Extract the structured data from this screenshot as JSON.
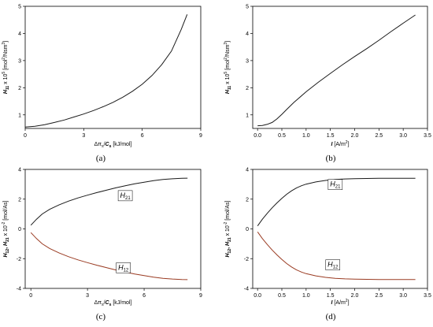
{
  "chart_data": [
    {
      "type": "line",
      "panel": "a",
      "caption": "(a)",
      "ylabel": {
        "var": "H",
        "sub": "11",
        "rest": " x 10",
        "sup": "5",
        "unit_a": " [mol",
        "unit_sup": "2",
        "unit_b": "/Nsm",
        "unit_sup2": "3",
        "unit_c": "]"
      },
      "xlabel": {
        "pre": "Δπ",
        "sub": "s",
        "mid": "/",
        "var": "C",
        "sub2": "s",
        "post": " [kJ/mol]"
      },
      "xlim": [
        0,
        9
      ],
      "ylim": [
        0.5,
        5
      ],
      "xticks": [
        0,
        3,
        6,
        9
      ],
      "yticks": [
        1,
        2,
        3,
        4,
        5
      ],
      "series": [
        {
          "color": "#1a1a1a",
          "x": [
            0,
            0.5,
            1,
            1.5,
            2,
            2.5,
            3,
            3.5,
            4,
            4.5,
            5,
            5.5,
            6,
            6.5,
            7,
            7.5,
            8,
            8.3
          ],
          "y": [
            0.55,
            0.58,
            0.64,
            0.72,
            0.81,
            0.92,
            1.03,
            1.16,
            1.3,
            1.46,
            1.65,
            1.87,
            2.13,
            2.45,
            2.85,
            3.35,
            4.15,
            4.7
          ]
        }
      ]
    },
    {
      "type": "line",
      "panel": "b",
      "caption": "(b)",
      "ylabel": {
        "var": "H",
        "sub": "11",
        "rest": " x 10",
        "sup": "5",
        "unit_a": " [mol",
        "unit_sup": "2",
        "unit_b": "/Nsm",
        "unit_sup2": "3",
        "unit_c": "]"
      },
      "xlabel": {
        "var": "I",
        "post": " [A/m",
        "sup": "2",
        "end": "]"
      },
      "xlim": [
        -0.1,
        3.5
      ],
      "ylim": [
        0.5,
        5
      ],
      "xticks": [
        0.0,
        0.5,
        1.0,
        1.5,
        2.0,
        2.5,
        3.0,
        3.5
      ],
      "xticklabels": [
        "0.0",
        "0.5",
        "1.0",
        "1.5",
        "2.0",
        "2.5",
        "3.0",
        "3.5"
      ],
      "yticks": [
        1,
        2,
        3,
        4,
        5
      ],
      "series": [
        {
          "color": "#1a1a1a",
          "x": [
            0,
            0.1,
            0.2,
            0.3,
            0.4,
            0.5,
            0.6,
            0.75,
            1.0,
            1.25,
            1.5,
            1.75,
            2.0,
            2.25,
            2.5,
            2.75,
            3.0,
            3.25
          ],
          "y": [
            0.6,
            0.61,
            0.65,
            0.72,
            0.85,
            1.02,
            1.2,
            1.46,
            1.85,
            2.2,
            2.53,
            2.85,
            3.15,
            3.44,
            3.75,
            4.07,
            4.38,
            4.68
          ]
        }
      ]
    },
    {
      "type": "line",
      "panel": "c",
      "caption": "(c)",
      "ylabel": {
        "var": "H",
        "sub": "12",
        "mid": ", ",
        "var2": "H",
        "sub2": "21",
        "rest": " x 10",
        "sup": "-2",
        "unit_a": " [mol/As]"
      },
      "xlabel": {
        "pre": "Δπ",
        "sub": "s",
        "mid": "/",
        "var": "C",
        "sub2": "s",
        "post": " [kJ/mol]"
      },
      "xlim": [
        -0.3,
        9
      ],
      "ylim": [
        -4,
        4
      ],
      "xticks": [
        0,
        3,
        6,
        9
      ],
      "yticks": [
        -4,
        -2,
        0,
        2,
        4
      ],
      "annotations": [
        {
          "var": "H",
          "sub": "21",
          "x": 5.0,
          "y": 2.1
        },
        {
          "var": "H",
          "sub": "12",
          "x": 4.9,
          "y": -2.75
        }
      ],
      "series": [
        {
          "color": "#1a1a1a",
          "x": [
            0,
            0.3,
            0.6,
            1,
            1.5,
            2,
            2.5,
            3,
            3.5,
            4,
            4.5,
            5,
            5.5,
            6,
            6.5,
            7,
            7.5,
            8,
            8.3
          ],
          "y": [
            0.25,
            0.65,
            1.0,
            1.32,
            1.62,
            1.87,
            2.08,
            2.27,
            2.44,
            2.6,
            2.76,
            2.9,
            3.03,
            3.14,
            3.24,
            3.32,
            3.37,
            3.4,
            3.41
          ]
        },
        {
          "color": "#9a3b22",
          "x": [
            0,
            0.3,
            0.6,
            1,
            1.5,
            2,
            2.5,
            3,
            3.5,
            4,
            4.5,
            5,
            5.5,
            6,
            6.5,
            7,
            7.5,
            8,
            8.3
          ],
          "y": [
            -0.25,
            -0.65,
            -1.0,
            -1.32,
            -1.62,
            -1.87,
            -2.08,
            -2.27,
            -2.44,
            -2.6,
            -2.76,
            -2.9,
            -3.03,
            -3.14,
            -3.24,
            -3.32,
            -3.37,
            -3.4,
            -3.41
          ]
        }
      ]
    },
    {
      "type": "line",
      "panel": "d",
      "caption": "(d)",
      "ylabel": {
        "var": "H",
        "sub": "12",
        "mid": ", ",
        "var2": "H",
        "sub2": "21",
        "rest": " x 10",
        "sup": "-2",
        "unit_a": " [mol/As]"
      },
      "xlabel": {
        "var": "I",
        "post": " [A/m",
        "sup": "2",
        "end": "]"
      },
      "xlim": [
        -0.1,
        3.5
      ],
      "ylim": [
        -4,
        4
      ],
      "xticks": [
        0.0,
        0.5,
        1.0,
        1.5,
        2.0,
        2.5,
        3.0,
        3.5
      ],
      "xticklabels": [
        "0.0",
        "0.5",
        "1.0",
        "1.5",
        "2.0",
        "2.5",
        "3.0",
        "3.5"
      ],
      "yticks": [
        -4,
        -2,
        0,
        2,
        4
      ],
      "annotations": [
        {
          "var": "H",
          "sub": "21",
          "x": 1.6,
          "y": 2.85
        },
        {
          "var": "H",
          "sub": "12",
          "x": 1.55,
          "y": -2.55
        }
      ],
      "series": [
        {
          "color": "#1a1a1a",
          "x": [
            0,
            0.1,
            0.2,
            0.3,
            0.4,
            0.5,
            0.6,
            0.7,
            0.8,
            0.9,
            1.0,
            1.2,
            1.4,
            1.6,
            1.8,
            2.0,
            2.5,
            3.0,
            3.25
          ],
          "y": [
            0.2,
            0.65,
            1.05,
            1.42,
            1.75,
            2.05,
            2.33,
            2.56,
            2.75,
            2.9,
            3.01,
            3.16,
            3.26,
            3.32,
            3.36,
            3.38,
            3.4,
            3.4,
            3.4
          ]
        },
        {
          "color": "#9a3b22",
          "x": [
            0,
            0.1,
            0.2,
            0.3,
            0.4,
            0.5,
            0.6,
            0.7,
            0.8,
            0.9,
            1.0,
            1.2,
            1.4,
            1.6,
            1.8,
            2.0,
            2.5,
            3.0,
            3.25
          ],
          "y": [
            -0.2,
            -0.65,
            -1.05,
            -1.42,
            -1.75,
            -2.05,
            -2.33,
            -2.56,
            -2.75,
            -2.9,
            -3.01,
            -3.16,
            -3.26,
            -3.32,
            -3.36,
            -3.38,
            -3.4,
            -3.4,
            -3.4
          ]
        }
      ]
    }
  ]
}
